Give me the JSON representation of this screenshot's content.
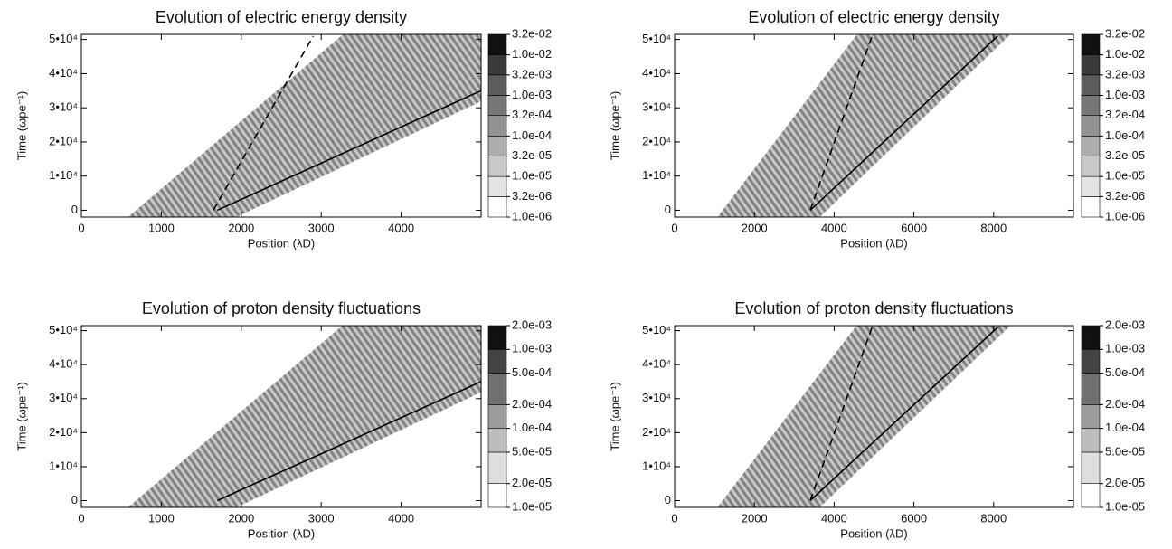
{
  "chart_data": [
    {
      "type": "contour",
      "title": "Evolution of electric energy density",
      "xlabel": "Position (λD)",
      "ylabel": "Time (ωpe⁻¹)",
      "xlim": [
        0,
        5000
      ],
      "ylim": [
        -2000,
        51500
      ],
      "xticks": [
        0,
        1000,
        2000,
        3000,
        4000
      ],
      "yticks": [
        0,
        {
          "value": 10000,
          "label": "1•10⁴"
        },
        {
          "value": 20000,
          "label": "2•10⁴"
        },
        {
          "value": 30000,
          "label": "3•10⁴"
        },
        {
          "value": 40000,
          "label": "4•10⁴"
        },
        {
          "value": 50000,
          "label": "5•10⁴"
        }
      ],
      "colorbar": {
        "log": true,
        "levels": [
          {
            "value": 1e-06,
            "label": "1.0e-06"
          },
          {
            "value": 3.2e-06,
            "label": "3.2e-06"
          },
          {
            "value": 1e-05,
            "label": "1.0e-05"
          },
          {
            "value": 3.2e-05,
            "label": "3.2e-05"
          },
          {
            "value": 0.0001,
            "label": "1.0e-04"
          },
          {
            "value": 0.00032,
            "label": "3.2e-04"
          },
          {
            "value": 0.001,
            "label": "1.0e-03"
          },
          {
            "value": 0.0032,
            "label": "3.2e-03"
          },
          {
            "value": 0.01,
            "label": "1.0e-02"
          },
          {
            "value": 0.032,
            "label": "3.2e-02"
          }
        ],
        "colors": [
          "#ffffff",
          "#e3e3e3",
          "#c8c8c8",
          "#adadad",
          "#929292",
          "#777777",
          "#5c5c5c",
          "#3a3a3a",
          "#111111"
        ]
      },
      "lines": [
        {
          "x": [
            1700,
            5000
          ],
          "y": [
            0,
            35000
          ],
          "style": "solid"
        },
        {
          "x": [
            1650,
            2900
          ],
          "y": [
            0,
            51000
          ],
          "style": "dashed"
        }
      ]
    },
    {
      "type": "contour",
      "title": "Evolution of electric energy density",
      "xlabel": "Position (λD)",
      "ylabel": "Time (ωpe⁻¹)",
      "xlim": [
        0,
        10000
      ],
      "ylim": [
        -2000,
        51500
      ],
      "xticks": [
        0,
        2000,
        4000,
        6000,
        8000
      ],
      "yticks": [
        0,
        {
          "value": 10000,
          "label": "1•10⁴"
        },
        {
          "value": 20000,
          "label": "2•10⁴"
        },
        {
          "value": 30000,
          "label": "3•10⁴"
        },
        {
          "value": 40000,
          "label": "4•10⁴"
        },
        {
          "value": 50000,
          "label": "5•10⁴"
        }
      ],
      "colorbar": {
        "log": true,
        "levels": [
          {
            "value": 1e-06,
            "label": "1.0e-06"
          },
          {
            "value": 3.2e-06,
            "label": "3.2e-06"
          },
          {
            "value": 1e-05,
            "label": "1.0e-05"
          },
          {
            "value": 3.2e-05,
            "label": "3.2e-05"
          },
          {
            "value": 0.0001,
            "label": "1.0e-04"
          },
          {
            "value": 0.00032,
            "label": "3.2e-04"
          },
          {
            "value": 0.001,
            "label": "1.0e-03"
          },
          {
            "value": 0.0032,
            "label": "3.2e-03"
          },
          {
            "value": 0.01,
            "label": "1.0e-02"
          },
          {
            "value": 0.032,
            "label": "3.2e-02"
          }
        ],
        "colors": [
          "#ffffff",
          "#e3e3e3",
          "#c8c8c8",
          "#adadad",
          "#929292",
          "#777777",
          "#5c5c5c",
          "#3a3a3a",
          "#111111"
        ]
      },
      "lines": [
        {
          "x": [
            3400,
            8100
          ],
          "y": [
            0,
            51000
          ],
          "style": "solid"
        },
        {
          "x": [
            3400,
            4950
          ],
          "y": [
            0,
            51000
          ],
          "style": "dashed"
        }
      ]
    },
    {
      "type": "contour",
      "title": "Evolution of proton density fluctuations",
      "xlabel": "Position (λD)",
      "ylabel": "Time (ωpe⁻¹)",
      "xlim": [
        0,
        5000
      ],
      "ylim": [
        -2000,
        51500
      ],
      "xticks": [
        0,
        1000,
        2000,
        3000,
        4000
      ],
      "yticks": [
        0,
        {
          "value": 10000,
          "label": "1•10⁴"
        },
        {
          "value": 20000,
          "label": "2•10⁴"
        },
        {
          "value": 30000,
          "label": "3•10⁴"
        },
        {
          "value": 40000,
          "label": "4•10⁴"
        },
        {
          "value": 50000,
          "label": "5•10⁴"
        }
      ],
      "colorbar": {
        "log": true,
        "levels": [
          {
            "value": 1e-05,
            "label": "1.0e-05"
          },
          {
            "value": 2e-05,
            "label": "2.0e-05"
          },
          {
            "value": 5e-05,
            "label": "5.0e-05"
          },
          {
            "value": 0.0001,
            "label": "1.0e-04"
          },
          {
            "value": 0.0002,
            "label": "2.0e-04"
          },
          {
            "value": 0.0005,
            "label": "5.0e-04"
          },
          {
            "value": 0.001,
            "label": "1.0e-03"
          },
          {
            "value": 0.002,
            "label": "2.0e-03"
          }
        ],
        "colors": [
          "#ffffff",
          "#dedede",
          "#bdbdbd",
          "#9c9c9c",
          "#707070",
          "#444444",
          "#111111"
        ]
      },
      "lines": [
        {
          "x": [
            1700,
            5000
          ],
          "y": [
            0,
            35000
          ],
          "style": "solid"
        }
      ]
    },
    {
      "type": "contour",
      "title": "Evolution of proton density fluctuations",
      "xlabel": "Position (λD)",
      "ylabel": "Time (ωpe⁻¹)",
      "xlim": [
        0,
        10000
      ],
      "ylim": [
        -2000,
        51500
      ],
      "xticks": [
        0,
        2000,
        4000,
        6000,
        8000
      ],
      "yticks": [
        0,
        {
          "value": 10000,
          "label": "1•10⁴"
        },
        {
          "value": 20000,
          "label": "2•10⁴"
        },
        {
          "value": 30000,
          "label": "3•10⁴"
        },
        {
          "value": 40000,
          "label": "4•10⁴"
        },
        {
          "value": 50000,
          "label": "5•10⁴"
        }
      ],
      "colorbar": {
        "log": true,
        "levels": [
          {
            "value": 1e-05,
            "label": "1.0e-05"
          },
          {
            "value": 2e-05,
            "label": "2.0e-05"
          },
          {
            "value": 5e-05,
            "label": "5.0e-05"
          },
          {
            "value": 0.0001,
            "label": "1.0e-04"
          },
          {
            "value": 0.0002,
            "label": "2.0e-04"
          },
          {
            "value": 0.0005,
            "label": "5.0e-04"
          },
          {
            "value": 0.001,
            "label": "1.0e-03"
          },
          {
            "value": 0.002,
            "label": "2.0e-03"
          }
        ],
        "colors": [
          "#ffffff",
          "#dedede",
          "#bdbdbd",
          "#9c9c9c",
          "#707070",
          "#444444",
          "#111111"
        ]
      },
      "lines": [
        {
          "x": [
            3400,
            8100
          ],
          "y": [
            0,
            51000
          ],
          "style": "solid"
        },
        {
          "x": [
            3400,
            4950
          ],
          "y": [
            0,
            51000
          ],
          "style": "dashed"
        }
      ]
    }
  ]
}
